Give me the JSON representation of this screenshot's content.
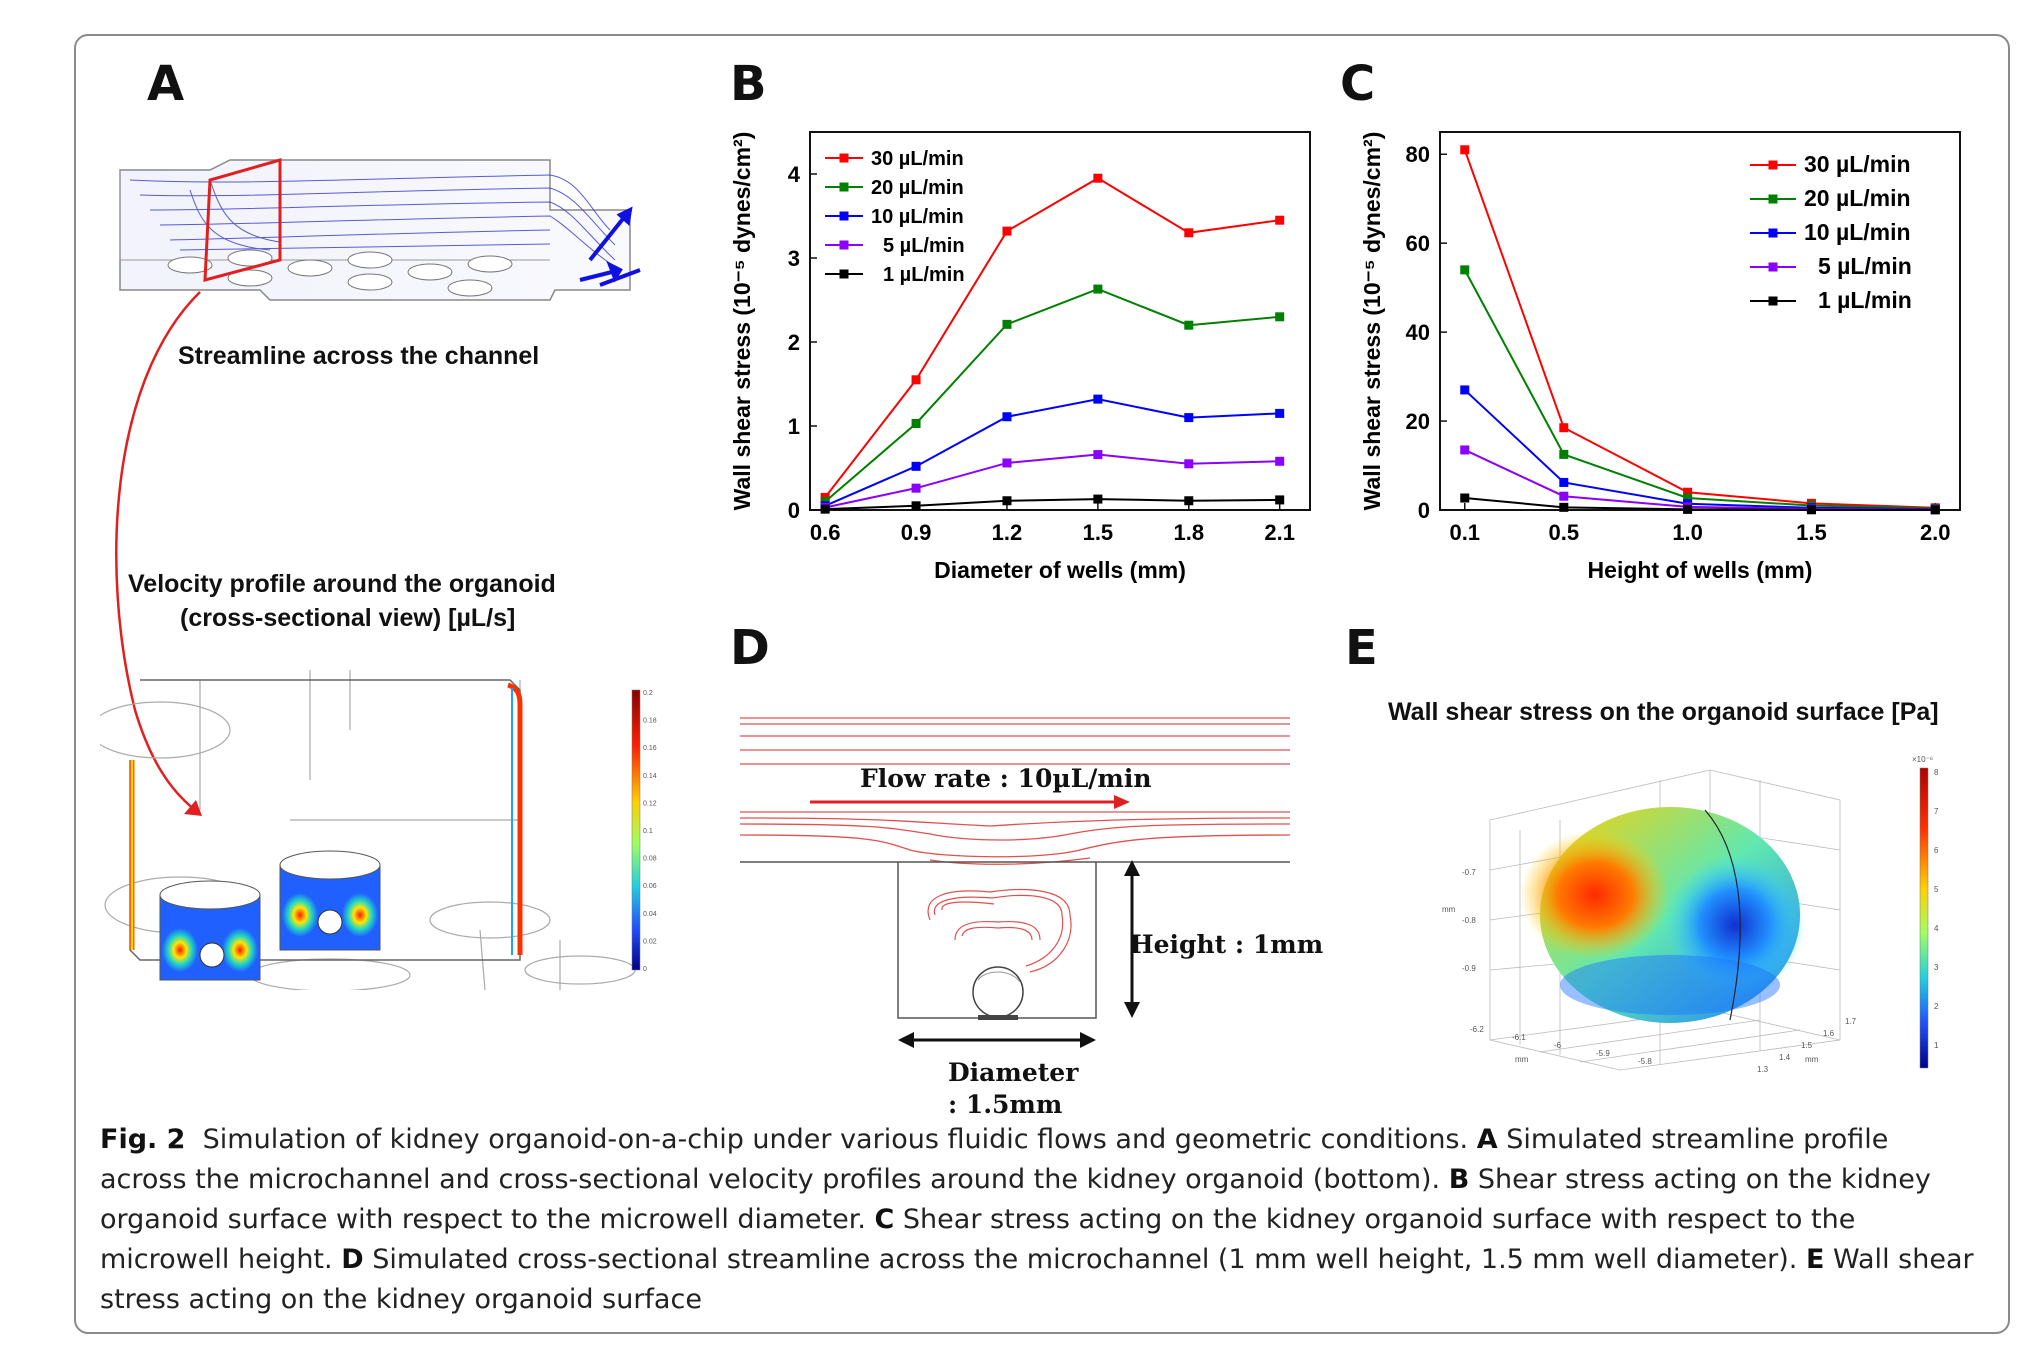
{
  "panels": {
    "a": {
      "letter": "A",
      "top_label": "Streamline across the channel",
      "bottom_title_1": "Velocity profile around the organoid",
      "bottom_title_2": "(cross-sectional view) [µL/s]",
      "colorbar_ticks": [
        "0.2",
        "0.18",
        "0.16",
        "0.14",
        "0.12",
        "0.1",
        "0.08",
        "0.06",
        "0.04",
        "0.02",
        "0"
      ]
    },
    "b": {
      "letter": "B"
    },
    "c": {
      "letter": "C"
    },
    "d": {
      "letter": "D",
      "flow_label": "Flow rate : 10µL/min",
      "height_label": "Height : 1mm",
      "diameter_label_1": "Diameter",
      "diameter_label_2": ": 1.5mm"
    },
    "e": {
      "letter": "E",
      "title": "Wall shear stress on the organoid surface [Pa]",
      "colorbar_ticks": [
        "8",
        "7",
        "6",
        "5",
        "4",
        "3",
        "2",
        "1"
      ],
      "colorbar_exp": "×10⁻⁶",
      "axis_z": [
        "-0.7",
        "-0.8",
        "-0.9"
      ],
      "axis_z_unit": "mm",
      "axis_x": [
        "-6.2",
        "-6.1",
        "-6",
        "-5.9",
        "-5.8"
      ],
      "axis_x_unit": "mm",
      "axis_y": [
        "1.3",
        "1.4",
        "1.5",
        "1.6",
        "1.7"
      ],
      "axis_y_unit": "mm"
    }
  },
  "colors": {
    "s30": "#ff0000",
    "s20": "#008000",
    "s10": "#0000ff",
    "s5": "#8b00ff",
    "s1": "#000000"
  },
  "chart_data": [
    {
      "type": "line",
      "xlabel": "Diameter of wells (mm)",
      "ylabel": "Wall shear stress (10⁻⁵ dynes/cm²)",
      "x": [
        0.6,
        0.9,
        1.2,
        1.5,
        1.8,
        2.1
      ],
      "x_ticks": [
        "0.6",
        "0.9",
        "1.2",
        "1.5",
        "1.8",
        "2.1"
      ],
      "y_ticks": [
        "0",
        "1",
        "2",
        "3",
        "4"
      ],
      "xlim": [
        0.55,
        2.2
      ],
      "ylim": [
        0,
        4.5
      ],
      "legend": "top-left",
      "series": [
        {
          "name": "30 µL/min",
          "color": "#ff0000",
          "values": [
            0.15,
            1.55,
            3.32,
            3.95,
            3.3,
            3.45
          ]
        },
        {
          "name": "20 µL/min",
          "color": "#008000",
          "values": [
            0.1,
            1.03,
            2.21,
            2.63,
            2.2,
            2.3
          ]
        },
        {
          "name": "10 µL/min",
          "color": "#0000ff",
          "values": [
            0.05,
            0.52,
            1.11,
            1.32,
            1.1,
            1.15
          ]
        },
        {
          "name": "5 µL/min",
          "color": "#8b00ff",
          "values": [
            0.03,
            0.26,
            0.56,
            0.66,
            0.55,
            0.58
          ]
        },
        {
          "name": "1 µL/min",
          "color": "#000000",
          "values": [
            0.01,
            0.05,
            0.11,
            0.13,
            0.11,
            0.12
          ]
        }
      ]
    },
    {
      "type": "line",
      "xlabel": "Height of wells (mm)",
      "ylabel": "Wall shear stress (10⁻⁵ dynes/cm²)",
      "x": [
        0.1,
        0.5,
        1.0,
        1.5,
        2.0
      ],
      "x_ticks": [
        "0.1",
        "0.5",
        "1.0",
        "1.5",
        "2.0"
      ],
      "y_ticks": [
        "0",
        "20",
        "40",
        "60",
        "80"
      ],
      "xlim": [
        0.0,
        2.1
      ],
      "ylim": [
        0,
        85
      ],
      "legend": "top-right",
      "series": [
        {
          "name": "30 µL/min",
          "color": "#ff0000",
          "values": [
            81,
            18.5,
            4,
            1.5,
            0.5
          ]
        },
        {
          "name": "20 µL/min",
          "color": "#008000",
          "values": [
            54,
            12.5,
            2.7,
            1.0,
            0.35
          ]
        },
        {
          "name": "10 µL/min",
          "color": "#0000ff",
          "values": [
            27,
            6.2,
            1.4,
            0.5,
            0.18
          ]
        },
        {
          "name": "5 µL/min",
          "color": "#8b00ff",
          "values": [
            13.5,
            3.1,
            0.7,
            0.25,
            0.09
          ]
        },
        {
          "name": "1 µL/min",
          "color": "#000000",
          "values": [
            2.7,
            0.6,
            0.14,
            0.05,
            0.02
          ]
        }
      ]
    }
  ],
  "caption": {
    "fig": "Fig. 2",
    "intro": "Simulation of kidney organoid-on-a-chip under various fluidic flows and geometric conditions.",
    "a_letter": "A",
    "a_text": "Simulated streamline profile across the microchannel and cross-sectional velocity profiles around the kidney organoid (bottom).",
    "b_letter": "B",
    "b_text": "Shear stress acting on the kidney organoid surface with respect to the microwell diameter.",
    "c_letter": "C",
    "c_text": "Shear stress acting on the kidney organoid surface with respect to the microwell height.",
    "d_letter": "D",
    "d_text": "Simulated cross-sectional streamline across the microchannel (1 mm well height, 1.5 mm well diameter).",
    "e_letter": "E",
    "e_text": "Wall shear stress acting on the kidney organoid surface"
  }
}
